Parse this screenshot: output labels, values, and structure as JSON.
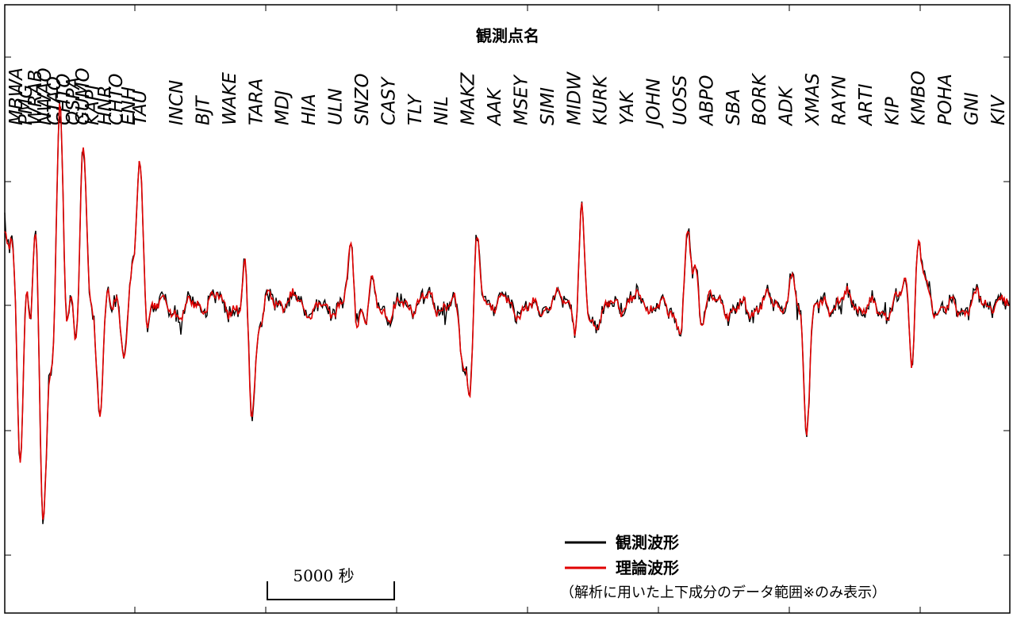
{
  "chart_data": {
    "type": "line",
    "title": "観測点名",
    "stations": [
      "MBWA",
      "PMG",
      "WRAB",
      "NWAO",
      "CTAO",
      "CHTO",
      "QSPA",
      "GUMO",
      "KAPI",
      "HNR",
      "CHTO",
      "ENH",
      "TAU",
      "INCN",
      "BJT",
      "WAKE",
      "TARA",
      "MDJ",
      "HIA",
      "ULN",
      "SNZO",
      "CASY",
      "TLY",
      "NIL",
      "MAKZ",
      "AAK",
      "MSEY",
      "SIMI",
      "MIDW",
      "KURK",
      "YAK",
      "JOHN",
      "UOSS",
      "ABPO",
      "SBA",
      "BORK",
      "ADK",
      "XMAS",
      "RAYN",
      "ARTI",
      "KIP",
      "KMBO",
      "POHA",
      "GNI",
      "KIV"
    ],
    "series": [
      {
        "name": "観測波形",
        "color": "#000000"
      },
      {
        "name": "理論波形",
        "color": "#e00000"
      }
    ],
    "scale_bar_label": "5000 秒",
    "note": "（解析に用いた上下成分のデータ範囲※のみ表示）",
    "legend_position": "bottom-right",
    "grid": false
  }
}
